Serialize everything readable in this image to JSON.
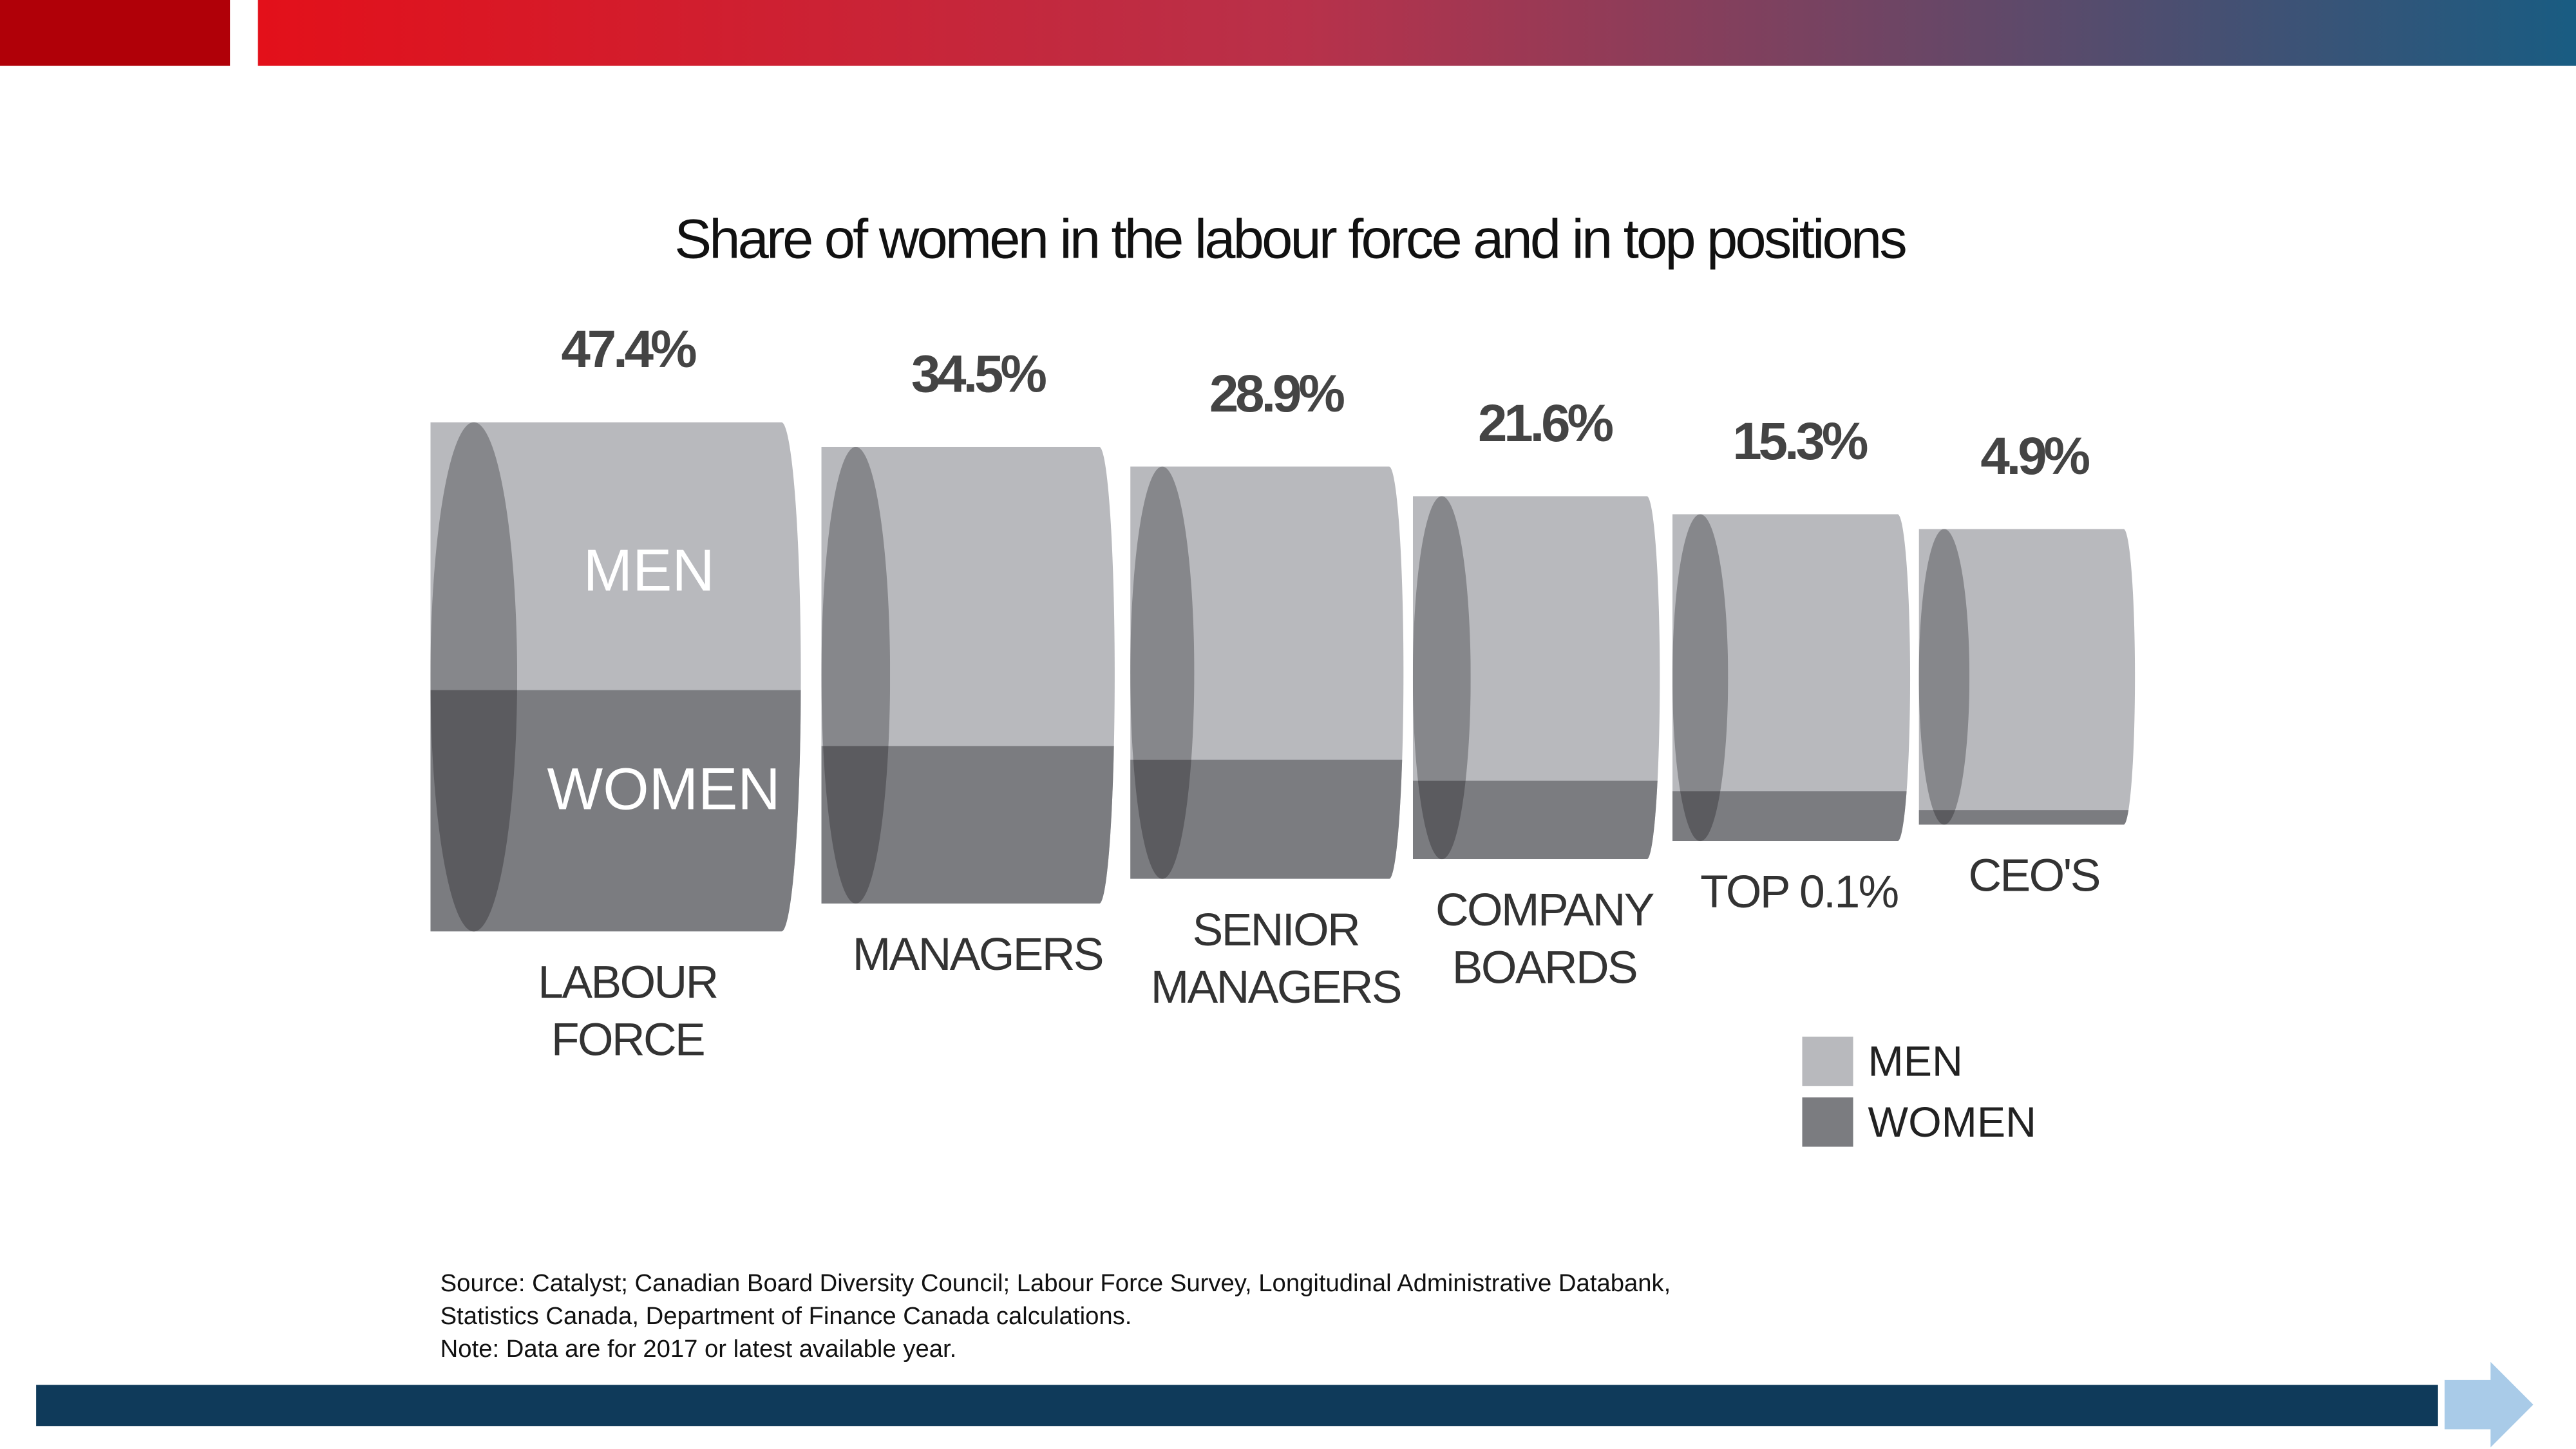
{
  "chart_data": {
    "type": "cylinder",
    "title": "Share of women in the labour force and in top positions",
    "categories": [
      [
        "LABOUR",
        "FORCE"
      ],
      [
        "MANAGERS"
      ],
      [
        "SENIOR",
        "MANAGERS"
      ],
      [
        "COMPANY",
        "BOARDS"
      ],
      [
        "TOP 0.1%"
      ],
      [
        "CEO'S"
      ]
    ],
    "values": [
      47.4,
      34.5,
      28.9,
      21.6,
      15.3,
      4.9
    ],
    "value_labels": [
      "47.4%",
      "34.5%",
      "28.9%",
      "21.6%",
      "15.3%",
      "4.9%"
    ],
    "ylim": [
      0,
      100
    ],
    "annotations": [
      "MEN",
      "WOMEN"
    ],
    "legend": [
      {
        "name": "MEN",
        "color": "#b8b9bd"
      },
      {
        "name": "WOMEN",
        "color": "#7b7c80"
      }
    ],
    "notes": [
      "Source: Catalyst; Canadian Board Diversity Council; Labour Force Survey, Longitudinal Administrative Databank,",
      "Statistics Canada, Department of Finance Canada calculations.",
      "Note: Data are for 2017 or latest available year."
    ]
  }
}
